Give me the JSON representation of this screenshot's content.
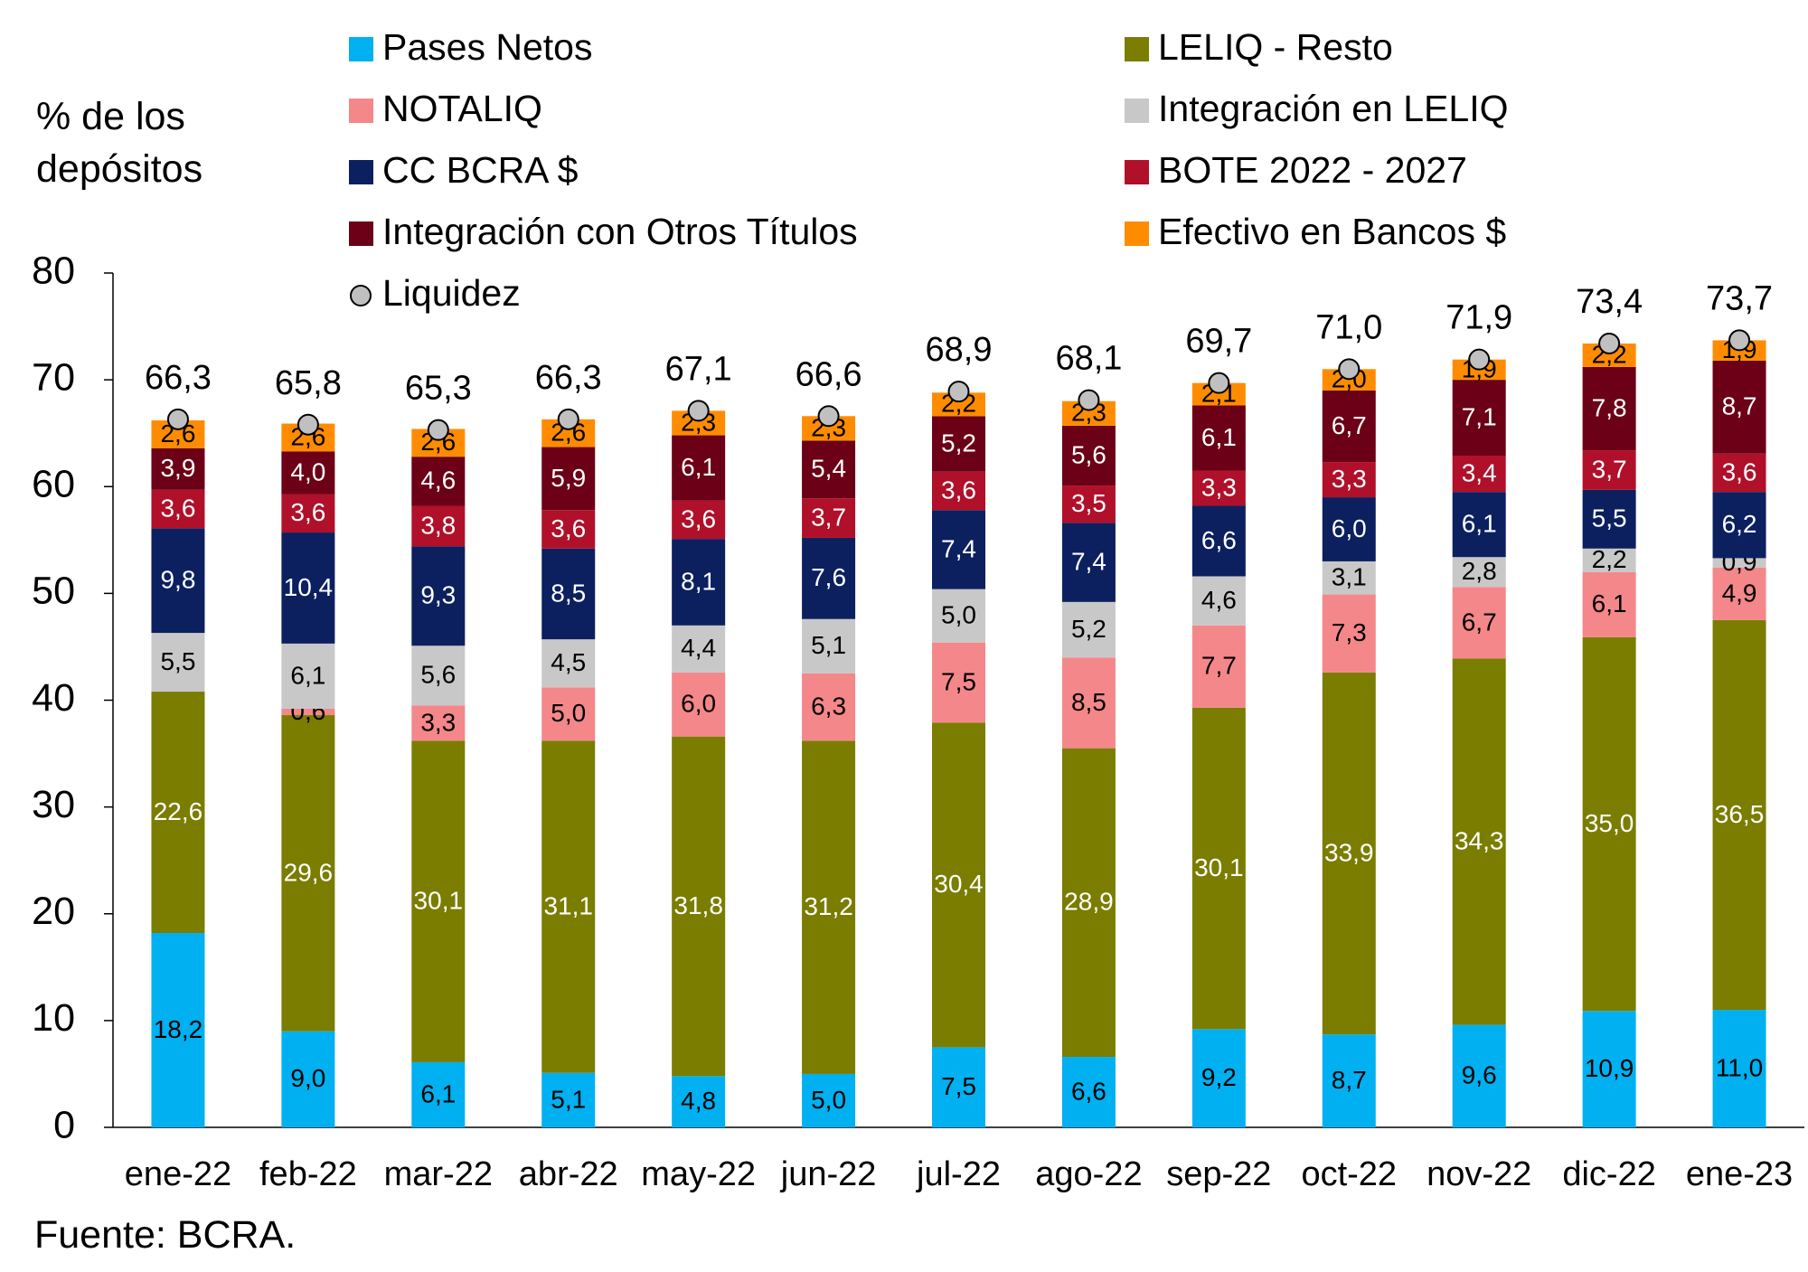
{
  "chart_data": {
    "type": "bar",
    "stacked": true,
    "y_label": "% de los depósitos",
    "source": "Fuente: BCRA.",
    "categories": [
      "ene-22",
      "feb-22",
      "mar-22",
      "abr-22",
      "may-22",
      "jun-22",
      "jul-22",
      "ago-22",
      "sep-22",
      "oct-22",
      "nov-22",
      "dic-22",
      "ene-23"
    ],
    "ylim": [
      0,
      80
    ],
    "yticks": [
      0,
      10,
      20,
      30,
      40,
      50,
      60,
      70,
      80
    ],
    "grid": false,
    "series": [
      {
        "name": "Pases Netos",
        "color": "#00b0f0",
        "label_color": "#000000",
        "values": [
          18.2,
          9.0,
          6.1,
          5.1,
          4.8,
          5.0,
          7.5,
          6.6,
          9.2,
          8.7,
          9.6,
          10.9,
          11.0
        ],
        "value_labels": [
          "18,2",
          "9,0",
          "6,1",
          "5,1",
          "4,8",
          "5,0",
          "7,5",
          "6,6",
          "9,2",
          "8,7",
          "9,6",
          "10,9",
          "11,0"
        ]
      },
      {
        "name": "LELIQ - Resto",
        "color": "#7a7d00",
        "label_color": "#ffffff",
        "values": [
          22.6,
          29.6,
          30.1,
          31.1,
          31.8,
          31.2,
          30.4,
          28.9,
          30.1,
          33.9,
          34.3,
          35.0,
          36.5
        ],
        "value_labels": [
          "22,6",
          "29,6",
          "30,1",
          "31,1",
          "31,8",
          "31,2",
          "30,4",
          "28,9",
          "30,1",
          "33,9",
          "34,3",
          "35,0",
          "36,5"
        ]
      },
      {
        "name": "NOTALIQ",
        "color": "#f4878a",
        "label_color": "#000000",
        "values": [
          null,
          0.6,
          3.3,
          5.0,
          6.0,
          6.3,
          7.5,
          8.5,
          7.7,
          7.3,
          6.7,
          6.1,
          4.9
        ],
        "value_labels": [
          null,
          "0,6",
          "3,3",
          "5,0",
          "6,0",
          "6,3",
          "7,5",
          "8,5",
          "7,7",
          "7,3",
          "6,7",
          "6,1",
          "4,9"
        ]
      },
      {
        "name": "Integración en LELIQ",
        "color": "#c8c8c8",
        "label_color": "#000000",
        "values": [
          5.5,
          6.1,
          5.6,
          4.5,
          4.4,
          5.1,
          5.0,
          5.2,
          4.6,
          3.1,
          2.8,
          2.2,
          0.9
        ],
        "value_labels": [
          "5,5",
          "6,1",
          "5,6",
          "4,5",
          "4,4",
          "5,1",
          "5,0",
          "5,2",
          "4,6",
          "3,1",
          "2,8",
          "2,2",
          "0,9"
        ]
      },
      {
        "name": "CC BCRA $",
        "color": "#0c2060",
        "label_color": "#ffffff",
        "values": [
          9.8,
          10.4,
          9.3,
          8.5,
          8.1,
          7.6,
          7.4,
          7.4,
          6.6,
          6.0,
          6.1,
          5.5,
          6.2
        ],
        "value_labels": [
          "9,8",
          "10,4",
          "9,3",
          "8,5",
          "8,1",
          "7,6",
          "7,4",
          "7,4",
          "6,6",
          "6,0",
          "6,1",
          "5,5",
          "6,2"
        ]
      },
      {
        "name": "BOTE 2022 - 2027",
        "color": "#b0102a",
        "label_color": "#ffffff",
        "values": [
          3.6,
          3.6,
          3.8,
          3.6,
          3.6,
          3.7,
          3.6,
          3.5,
          3.3,
          3.3,
          3.4,
          3.7,
          3.6
        ],
        "value_labels": [
          "3,6",
          "3,6",
          "3,8",
          "3,6",
          "3,6",
          "3,7",
          "3,6",
          "3,5",
          "3,3",
          "3,3",
          "3,4",
          "3,7",
          "3,6"
        ]
      },
      {
        "name": "Integración con Otros Títulos",
        "color": "#6b0016",
        "label_color": "#ffffff",
        "values": [
          3.9,
          4.0,
          4.6,
          5.9,
          6.1,
          5.4,
          5.2,
          5.6,
          6.1,
          6.7,
          7.1,
          7.8,
          8.7
        ],
        "value_labels": [
          "3,9",
          "4,0",
          "4,6",
          "5,9",
          "6,1",
          "5,4",
          "5,2",
          "5,6",
          "6,1",
          "6,7",
          "7,1",
          "7,8",
          "8,7"
        ]
      },
      {
        "name": "Efectivo en Bancos $",
        "color": "#ff8c00",
        "label_color": "#000000",
        "values": [
          2.6,
          2.6,
          2.6,
          2.6,
          2.3,
          2.3,
          2.2,
          2.3,
          2.1,
          2.0,
          1.9,
          2.2,
          1.9
        ],
        "value_labels": [
          "2,6",
          "2,6",
          "2,6",
          "2,6",
          "2,3",
          "2,3",
          "2,2",
          "2,3",
          "2,1",
          "2,0",
          "1,9",
          "2,2",
          "1,9"
        ]
      },
      {
        "name": "Liquidez",
        "type": "scatter",
        "color": "#c0c0c0",
        "label_color": "#000000",
        "values": [
          66.3,
          65.8,
          65.3,
          66.3,
          67.1,
          66.6,
          68.9,
          68.1,
          69.7,
          71.0,
          71.9,
          73.4,
          73.7
        ],
        "value_labels": [
          "66,3",
          "65,8",
          "65,3",
          "66,3",
          "67,1",
          "66,6",
          "68,9",
          "68,1",
          "69,7",
          "71,0",
          "71,9",
          "73,4",
          "73,7"
        ]
      }
    ]
  }
}
